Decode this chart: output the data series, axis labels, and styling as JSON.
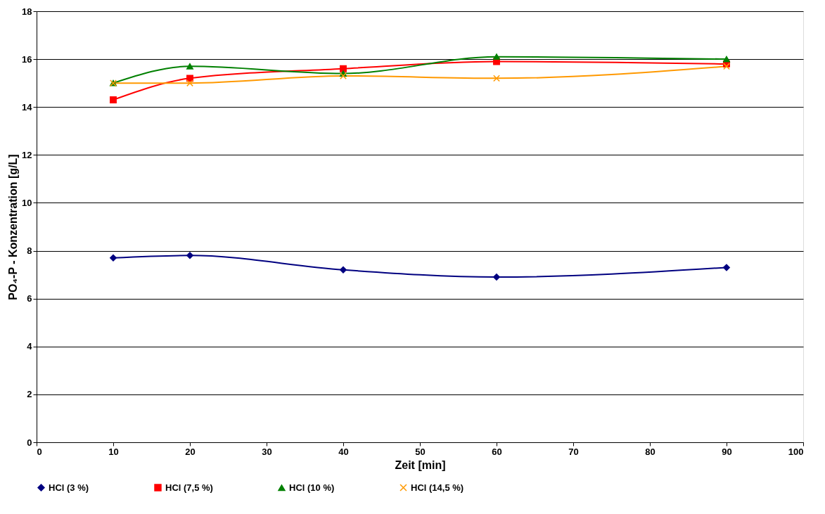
{
  "chart_data": {
    "type": "line",
    "xlabel": "Zeit [min]",
    "ylabel": "PO₄-P - Konzentration [g/L]",
    "x": [
      10,
      20,
      40,
      60,
      90
    ],
    "xlim": [
      0,
      100
    ],
    "xticks": [
      0,
      10,
      20,
      30,
      40,
      50,
      60,
      70,
      80,
      90,
      100
    ],
    "ylim": [
      0,
      18
    ],
    "yticks": [
      0,
      2,
      4,
      6,
      8,
      10,
      12,
      14,
      16,
      18
    ],
    "grid": "y",
    "legend": "bottom",
    "line_style": "solid",
    "series": [
      {
        "name": "HCl (3 %)",
        "color": "#000080",
        "marker": "diamond",
        "values": [
          7.7,
          7.8,
          7.2,
          6.9,
          7.3
        ]
      },
      {
        "name": "HCl (7,5 %)",
        "color": "#ff0000",
        "marker": "square",
        "values": [
          14.3,
          15.2,
          15.6,
          15.9,
          15.8
        ]
      },
      {
        "name": "HCl (10 %)",
        "color": "#008000",
        "marker": "triangle",
        "values": [
          15.0,
          15.7,
          15.4,
          16.1,
          16.0
        ]
      },
      {
        "name": "HCl (14,5 %)",
        "color": "#ff9900",
        "marker": "cross",
        "values": [
          15.0,
          15.0,
          15.3,
          15.2,
          15.7
        ]
      }
    ]
  }
}
